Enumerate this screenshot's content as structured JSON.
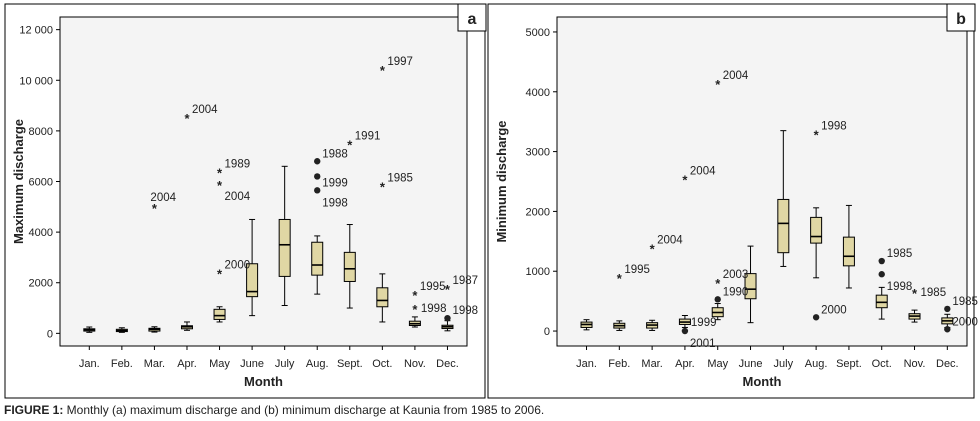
{
  "figure": {
    "caption_label": "FIGURE 1:",
    "caption_text": " Monthly (a) maximum discharge and (b) minimum discharge at Kaunia from 1985 to 2006."
  },
  "colors": {
    "box_fill": "#e0d7a4",
    "plot_bg": "#f4f4f4",
    "frame": "#000000",
    "text": "#222222"
  },
  "chart_data": [
    {
      "type": "boxplot",
      "panel_label": "a",
      "xlabel": "Month",
      "ylabel": "Maximum discharge",
      "ylim": [
        -500,
        12500
      ],
      "yticks": [
        0,
        2000,
        4000,
        6000,
        8000,
        10000,
        12000
      ],
      "ytick_labels": [
        "0",
        "2000",
        "4000",
        "6000",
        "8000",
        "10 000",
        "12 000"
      ],
      "categories": [
        "Jan.",
        "Feb.",
        "Mar.",
        "Apr.",
        "May",
        "June",
        "July",
        "Aug.",
        "Sept.",
        "Oct.",
        "Nov.",
        "Dec."
      ],
      "boxes": [
        {
          "min": 40,
          "q1": 90,
          "median": 140,
          "q3": 180,
          "max": 250
        },
        {
          "min": 40,
          "q1": 70,
          "median": 110,
          "q3": 160,
          "max": 220
        },
        {
          "min": 50,
          "q1": 90,
          "median": 160,
          "q3": 200,
          "max": 260
        },
        {
          "min": 120,
          "q1": 180,
          "median": 260,
          "q3": 300,
          "max": 450
        },
        {
          "min": 450,
          "q1": 550,
          "median": 700,
          "q3": 950,
          "max": 1050
        },
        {
          "min": 700,
          "q1": 1450,
          "median": 1650,
          "q3": 2750,
          "max": 4500
        },
        {
          "min": 1100,
          "q1": 2250,
          "median": 3500,
          "q3": 4500,
          "max": 6600
        },
        {
          "min": 1550,
          "q1": 2300,
          "median": 2700,
          "q3": 3600,
          "max": 3850
        },
        {
          "min": 1000,
          "q1": 2050,
          "median": 2550,
          "q3": 3200,
          "max": 4300
        },
        {
          "min": 450,
          "q1": 1050,
          "median": 1300,
          "q3": 1800,
          "max": 2350
        },
        {
          "min": 250,
          "q1": 310,
          "median": 380,
          "q3": 480,
          "max": 650
        },
        {
          "min": 100,
          "q1": 190,
          "median": 260,
          "q3": 320,
          "max": 500
        }
      ],
      "outliers": [
        {
          "month": 2,
          "value": 5000,
          "marker": "star",
          "label": "2004",
          "label_pos": "above"
        },
        {
          "month": 3,
          "value": 8550,
          "marker": "star",
          "label": "2004",
          "label_pos": "above-right"
        },
        {
          "month": 4,
          "value": 6400,
          "marker": "star",
          "label": "1989",
          "label_pos": "above-right"
        },
        {
          "month": 4,
          "value": 5900,
          "marker": "star",
          "label": "2004",
          "label_pos": "below-right"
        },
        {
          "month": 4,
          "value": 2400,
          "marker": "star",
          "label": "2000",
          "label_pos": "above-right"
        },
        {
          "month": 7,
          "value": 6800,
          "marker": "dot",
          "label": "1988",
          "label_pos": "above-right"
        },
        {
          "month": 7,
          "value": 6200,
          "marker": "dot",
          "label": "",
          "label_pos": "none"
        },
        {
          "month": 7,
          "value": 5650,
          "marker": "dot",
          "label": "1999",
          "label_pos": "above-right"
        },
        {
          "month": 7,
          "value": 5650,
          "marker": "none",
          "label": "1998",
          "label_pos": "below-right"
        },
        {
          "month": 8,
          "value": 7500,
          "marker": "star",
          "label": "1991",
          "label_pos": "above-right"
        },
        {
          "month": 9,
          "value": 10450,
          "marker": "star",
          "label": "1997",
          "label_pos": "above-right"
        },
        {
          "month": 9,
          "value": 5850,
          "marker": "star",
          "label": "1985",
          "label_pos": "above-right"
        },
        {
          "month": 10,
          "value": 1550,
          "marker": "star",
          "label": "1995",
          "label_pos": "above-right"
        },
        {
          "month": 10,
          "value": 1000,
          "marker": "star",
          "label": "1998",
          "label_pos": "right"
        },
        {
          "month": 11,
          "value": 1800,
          "marker": "star",
          "label": "1987",
          "label_pos": "above-right"
        },
        {
          "month": 11,
          "value": 600,
          "marker": "dot",
          "label": "1998",
          "label_pos": "above-right"
        }
      ]
    },
    {
      "type": "boxplot",
      "panel_label": "b",
      "xlabel": "Month",
      "ylabel": "Minimum discharge",
      "ylim": [
        -250,
        5250
      ],
      "yticks": [
        0,
        1000,
        2000,
        3000,
        4000,
        5000
      ],
      "ytick_labels": [
        "0",
        "1000",
        "2000",
        "3000",
        "4000",
        "5000"
      ],
      "categories": [
        "Jan.",
        "Feb.",
        "Mar.",
        "Apr.",
        "May",
        "June",
        "July",
        "Aug.",
        "Sept.",
        "Oct.",
        "Nov.",
        "Dec."
      ],
      "boxes": [
        {
          "min": 20,
          "q1": 60,
          "median": 110,
          "q3": 150,
          "max": 190
        },
        {
          "min": 10,
          "q1": 50,
          "median": 90,
          "q3": 130,
          "max": 170
        },
        {
          "min": 10,
          "q1": 50,
          "median": 100,
          "q3": 140,
          "max": 180
        },
        {
          "min": 60,
          "q1": 110,
          "median": 150,
          "q3": 200,
          "max": 260
        },
        {
          "min": 190,
          "q1": 240,
          "median": 310,
          "q3": 390,
          "max": 460
        },
        {
          "min": 140,
          "q1": 540,
          "median": 700,
          "q3": 960,
          "max": 1420
        },
        {
          "min": 1080,
          "q1": 1310,
          "median": 1800,
          "q3": 2200,
          "max": 3350
        },
        {
          "min": 890,
          "q1": 1470,
          "median": 1580,
          "q3": 1900,
          "max": 2060
        },
        {
          "min": 720,
          "q1": 1090,
          "median": 1250,
          "q3": 1570,
          "max": 2100
        },
        {
          "min": 200,
          "q1": 390,
          "median": 480,
          "q3": 600,
          "max": 730
        },
        {
          "min": 150,
          "q1": 200,
          "median": 250,
          "q3": 290,
          "max": 350
        },
        {
          "min": 60,
          "q1": 120,
          "median": 170,
          "q3": 220,
          "max": 280
        }
      ],
      "outliers": [
        {
          "month": 1,
          "value": 900,
          "marker": "star",
          "label": "1995",
          "label_pos": "above-right"
        },
        {
          "month": 2,
          "value": 1400,
          "marker": "star",
          "label": "2004",
          "label_pos": "above-right"
        },
        {
          "month": 3,
          "value": 2550,
          "marker": "star",
          "label": "2004",
          "label_pos": "above-right"
        },
        {
          "month": 3,
          "value": 150,
          "marker": "none",
          "label": "1999",
          "label_pos": "right"
        },
        {
          "month": 3,
          "value": 0,
          "marker": "dot",
          "label": "2001",
          "label_pos": "below-right"
        },
        {
          "month": 4,
          "value": 4150,
          "marker": "star",
          "label": "2004",
          "label_pos": "above-right"
        },
        {
          "month": 4,
          "value": 820,
          "marker": "star",
          "label": "2003",
          "label_pos": "above-right"
        },
        {
          "month": 4,
          "value": 530,
          "marker": "dot",
          "label": "1990",
          "label_pos": "above-right"
        },
        {
          "month": 7,
          "value": 3300,
          "marker": "star",
          "label": "1998",
          "label_pos": "above-right"
        },
        {
          "month": 7,
          "value": 230,
          "marker": "dot",
          "label": "2000",
          "label_pos": "above-right"
        },
        {
          "month": 9,
          "value": 1170,
          "marker": "dot",
          "label": "1985",
          "label_pos": "above-right"
        },
        {
          "month": 9,
          "value": 950,
          "marker": "dot",
          "label": "1998",
          "label_pos": "below-right"
        },
        {
          "month": 10,
          "value": 650,
          "marker": "star",
          "label": "1985",
          "label_pos": "right"
        },
        {
          "month": 11,
          "value": 370,
          "marker": "dot",
          "label": "1985",
          "label_pos": "above-right"
        },
        {
          "month": 11,
          "value": 30,
          "marker": "dot",
          "label": "2000",
          "label_pos": "above-right"
        }
      ]
    }
  ]
}
